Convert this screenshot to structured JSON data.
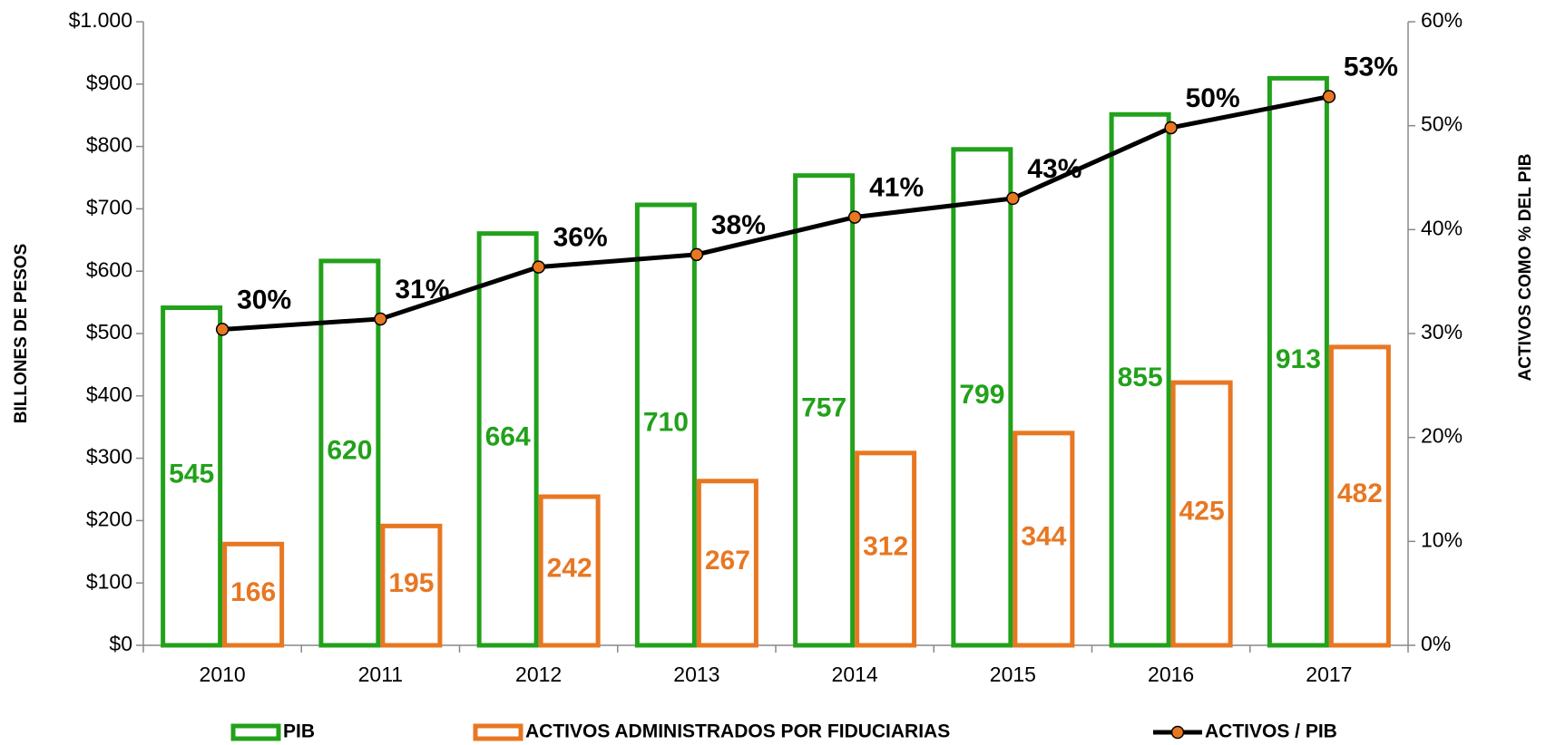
{
  "chart_data": {
    "type": "bar",
    "y_label": "BILLONES DE PESOS",
    "y2_label": "ACTIVOS COMO % DEL PIB",
    "categories": [
      "2010",
      "2011",
      "2012",
      "2013",
      "2014",
      "2015",
      "2016",
      "2017"
    ],
    "series": [
      {
        "name": "PIB",
        "type": "bar",
        "color": "#22a11a",
        "values": [
          545,
          620,
          664,
          710,
          757,
          799,
          855,
          913
        ]
      },
      {
        "name": "ACTIVOS ADMINISTRADOS POR FIDUCIARIAS",
        "type": "bar",
        "color": "#e87722",
        "values": [
          166,
          195,
          242,
          267,
          312,
          344,
          425,
          482
        ]
      },
      {
        "name": "ACTIVOS / PIB",
        "type": "line",
        "axis": "y2",
        "color": "#000000",
        "marker_color": "#e87722",
        "values": [
          30.4,
          31.4,
          36.4,
          37.6,
          41.2,
          43.0,
          49.8,
          52.8
        ],
        "value_labels": [
          "30%",
          "31%",
          "36%",
          "38%",
          "41%",
          "43%",
          "50%",
          "53%"
        ]
      }
    ],
    "ylim": [
      0,
      1000
    ],
    "yticks": [
      {
        "value": 0,
        "label": "$0"
      },
      {
        "value": 100,
        "label": "$100"
      },
      {
        "value": 200,
        "label": "$200"
      },
      {
        "value": 300,
        "label": "$300"
      },
      {
        "value": 400,
        "label": "$400"
      },
      {
        "value": 500,
        "label": "$500"
      },
      {
        "value": 600,
        "label": "$600"
      },
      {
        "value": 700,
        "label": "$700"
      },
      {
        "value": 800,
        "label": "$800"
      },
      {
        "value": 900,
        "label": "$900"
      },
      {
        "value": 1000,
        "label": "$1.000"
      }
    ],
    "y2lim": [
      0,
      60
    ],
    "y2ticks": [
      {
        "value": 0,
        "label": "0%"
      },
      {
        "value": 10,
        "label": "10%"
      },
      {
        "value": 20,
        "label": "20%"
      },
      {
        "value": 30,
        "label": "30%"
      },
      {
        "value": 40,
        "label": "40%"
      },
      {
        "value": 50,
        "label": "50%"
      },
      {
        "value": 60,
        "label": "60%"
      }
    ],
    "legend": "bottom"
  }
}
